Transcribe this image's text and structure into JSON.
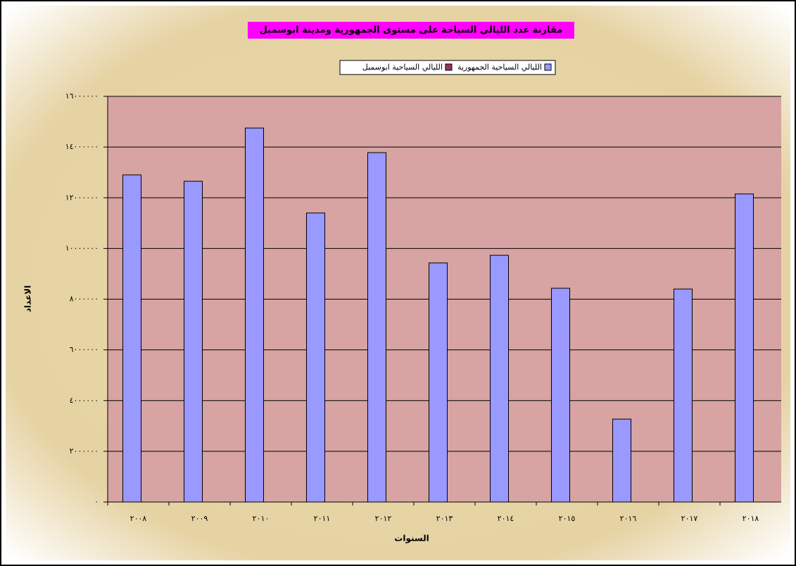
{
  "chart_data": {
    "type": "bar",
    "title": "مقارنة عدد الليالي السياحة على مستوى الجمهورية ومدينة ابوسمبل",
    "xlabel": "السنوات",
    "ylabel": "الاعداد",
    "categories": [
      "٢٠٠٨",
      "٢٠٠٩",
      "٢٠١٠",
      "٢٠١١",
      "٢٠١٢",
      "٢٠١٣",
      "٢٠١٤",
      "٢٠١٥",
      "٢٠١٦",
      "٢٠١٧",
      "٢٠١٨"
    ],
    "series": [
      {
        "name": "الليالي السياحية الجمهورية",
        "color": "#9999ff",
        "values": [
          12900000,
          12650000,
          14750000,
          11400000,
          13780000,
          9430000,
          9730000,
          8430000,
          3270000,
          8400000,
          12150000
        ]
      },
      {
        "name": "الليالي السياحية ابوسمبل",
        "color": "#993366",
        "values": [
          0,
          0,
          0,
          0,
          0,
          0,
          0,
          0,
          0,
          0,
          0
        ]
      }
    ],
    "ylim": [
      0,
      16000000
    ],
    "yticks": [
      {
        "value": 0,
        "label": "٠"
      },
      {
        "value": 2000000,
        "label": "٢٠٠٠٠٠٠"
      },
      {
        "value": 4000000,
        "label": "٤٠٠٠٠٠٠"
      },
      {
        "value": 6000000,
        "label": "٦٠٠٠٠٠٠"
      },
      {
        "value": 8000000,
        "label": "٨٠٠٠٠٠٠"
      },
      {
        "value": 10000000,
        "label": "١٠٠٠٠٠٠٠"
      },
      {
        "value": 12000000,
        "label": "١٢٠٠٠٠٠٠"
      },
      {
        "value": 14000000,
        "label": "١٤٠٠٠٠٠٠"
      },
      {
        "value": 16000000,
        "label": "١٦٠٠٠٠٠٠"
      }
    ],
    "grid": true,
    "legend": "top"
  }
}
